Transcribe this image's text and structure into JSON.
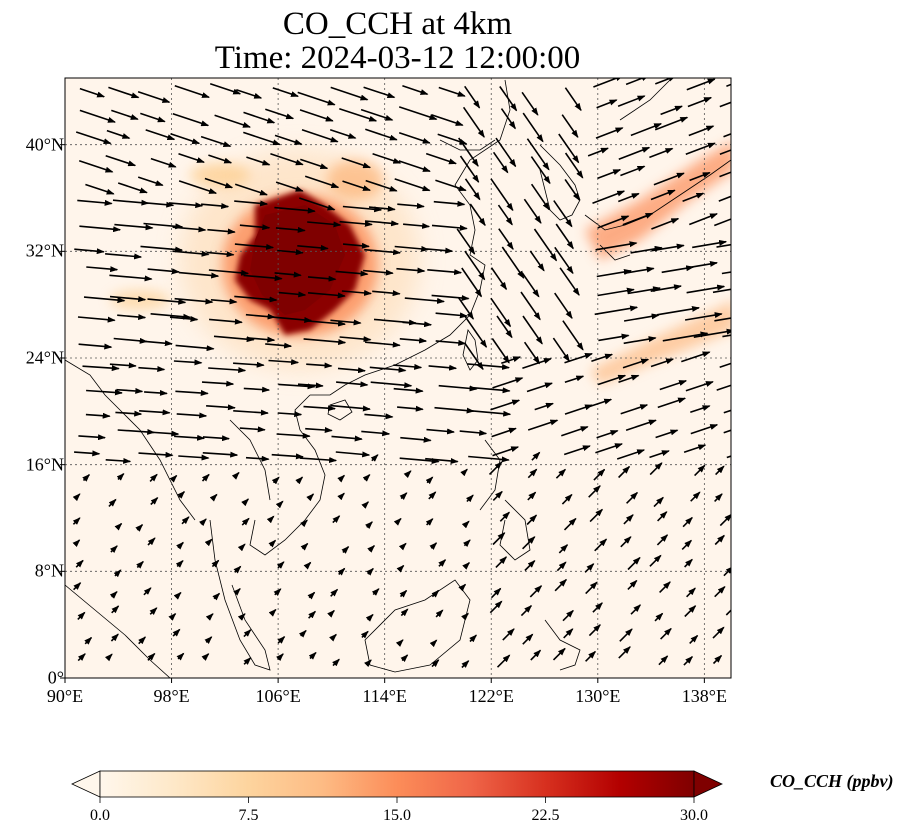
{
  "title": "CO_CCH at 4km",
  "subtitle": "Time: 2024-03-12 12:00:00",
  "map": {
    "lon_range": [
      90,
      140
    ],
    "lat_range": [
      0,
      45
    ],
    "gridlines": "dotted",
    "x_ticks": [
      {
        "value": 90,
        "label": "90°E"
      },
      {
        "value": 98,
        "label": "98°E"
      },
      {
        "value": 106,
        "label": "106°E"
      },
      {
        "value": 114,
        "label": "114°E"
      },
      {
        "value": 122,
        "label": "122°E"
      },
      {
        "value": 130,
        "label": "130°E"
      },
      {
        "value": 138,
        "label": "138°E"
      }
    ],
    "y_ticks": [
      {
        "value": 0,
        "label": "0°"
      },
      {
        "value": 8,
        "label": "8°N"
      },
      {
        "value": 16,
        "label": "16°N"
      },
      {
        "value": 24,
        "label": "24°N"
      },
      {
        "value": 32,
        "label": "32°N"
      },
      {
        "value": 40,
        "label": "40°N"
      }
    ],
    "plume_core_center_lon": 107,
    "plume_core_center_lat": 31,
    "plume_color": "#7f0000"
  },
  "colorbar": {
    "label": "CO_CCH (ppbv)",
    "min": 0.0,
    "max": 30.0,
    "extend": "both",
    "colormap": "OrRd",
    "ticks": [
      "0.0",
      "7.5",
      "15.0",
      "22.5",
      "30.0"
    ]
  }
}
